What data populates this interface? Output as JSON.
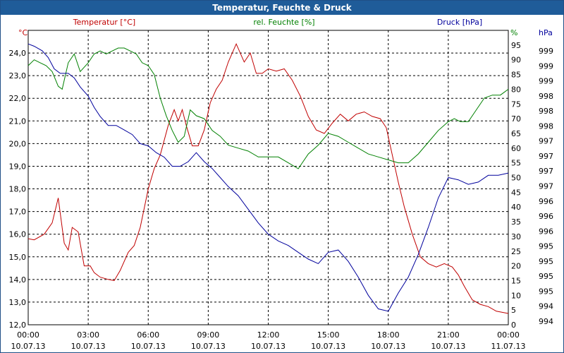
{
  "window": {
    "title": "Temperatur, Feuchte & Druck"
  },
  "colors": {
    "temperature": "#c00000",
    "humidity": "#008000",
    "pressure": "#00009c",
    "grid": "#000000",
    "axis_text": "#000000",
    "title_bar": "#1f5c99"
  },
  "chart_data": {
    "type": "line",
    "x_ticks": [
      {
        "time": "00:00",
        "date": "10.07.13"
      },
      {
        "time": "03:00",
        "date": "10.07.13"
      },
      {
        "time": "06:00",
        "date": "10.07.13"
      },
      {
        "time": "09:00",
        "date": "10.07.13"
      },
      {
        "time": "12:00",
        "date": "10.07.13"
      },
      {
        "time": "15:00",
        "date": "10.07.13"
      },
      {
        "time": "18:00",
        "date": "10.07.13"
      },
      {
        "time": "21:00",
        "date": "10.07.13"
      },
      {
        "time": "00:00",
        "date": "11.07.13"
      }
    ],
    "xlim": [
      0,
      24
    ],
    "axes": {
      "temperature": {
        "label": "Temperatur [°C]",
        "unit": "°C",
        "ylim": [
          12.0,
          25.0
        ],
        "ticks": [
          "12,0",
          "13,0",
          "14,0",
          "15,0",
          "16,0",
          "17,0",
          "18,0",
          "19,0",
          "20,0",
          "21,0",
          "22,0",
          "23,0",
          "24,0"
        ]
      },
      "humidity": {
        "label": "rel. Feuchte [%]",
        "unit": "%",
        "ylim": [
          0,
          100
        ],
        "ticks": [
          "0",
          "5",
          "10",
          "15",
          "20",
          "25",
          "30",
          "35",
          "40",
          "45",
          "50",
          "55",
          "60",
          "65",
          "70",
          "75",
          "80",
          "85",
          "90",
          "95"
        ]
      },
      "pressure": {
        "label": "Druck [hPa]",
        "unit": "hPa",
        "ticks": [
          "994",
          "994",
          "995",
          "995",
          "995",
          "995",
          "996",
          "996",
          "996",
          "997",
          "997",
          "997",
          "997",
          "998",
          "998",
          "998",
          "999",
          "999",
          "999"
        ]
      }
    },
    "series": [
      {
        "name": "Temperatur [°C]",
        "axis": "temperature",
        "x": [
          0,
          0.3,
          0.8,
          1.2,
          1.5,
          1.8,
          2.0,
          2.2,
          2.5,
          2.8,
          3.1,
          3.3,
          3.6,
          4.0,
          4.3,
          4.6,
          5.0,
          5.3,
          5.6,
          6.0,
          6.3,
          6.6,
          7.0,
          7.3,
          7.5,
          7.7,
          7.9,
          8.2,
          8.5,
          8.8,
          9.1,
          9.4,
          9.7,
          10.0,
          10.4,
          10.8,
          11.1,
          11.4,
          11.7,
          12.0,
          12.4,
          12.8,
          13.2,
          13.6,
          14.0,
          14.4,
          14.8,
          15.2,
          15.6,
          16.0,
          16.4,
          16.8,
          17.2,
          17.6,
          17.9,
          18.2,
          18.5,
          18.8,
          19.2,
          19.6,
          20.0,
          20.4,
          20.8,
          21.2,
          21.5,
          21.8,
          22.2,
          22.6,
          23.0,
          23.4,
          23.7,
          24.0
        ],
        "values": [
          15.8,
          15.75,
          16.0,
          16.5,
          17.6,
          15.6,
          15.3,
          16.3,
          16.1,
          14.6,
          14.6,
          14.3,
          14.1,
          14.0,
          13.95,
          14.4,
          15.2,
          15.5,
          16.3,
          18.0,
          18.9,
          19.5,
          20.8,
          21.5,
          21.0,
          21.5,
          20.8,
          19.9,
          19.9,
          20.6,
          21.8,
          22.4,
          22.8,
          23.6,
          24.4,
          23.6,
          24.0,
          23.1,
          23.1,
          23.3,
          23.2,
          23.3,
          22.8,
          22.1,
          21.2,
          20.6,
          20.45,
          20.9,
          21.3,
          21.0,
          21.3,
          21.4,
          21.2,
          21.1,
          20.7,
          19.5,
          18.3,
          17.2,
          16.0,
          15.0,
          14.7,
          14.55,
          14.7,
          14.55,
          14.2,
          13.7,
          13.1,
          12.9,
          12.8,
          12.6,
          12.55,
          12.5
        ]
      },
      {
        "name": "rel. Feuchte [%]",
        "axis": "humidity",
        "x": [
          0,
          0.3,
          0.6,
          0.9,
          1.2,
          1.5,
          1.7,
          2.0,
          2.3,
          2.6,
          3.0,
          3.3,
          3.6,
          3.9,
          4.2,
          4.5,
          4.8,
          5.1,
          5.4,
          5.7,
          6.0,
          6.3,
          6.6,
          6.9,
          7.2,
          7.5,
          7.8,
          8.1,
          8.4,
          8.8,
          9.2,
          9.6,
          10.0,
          10.5,
          11.0,
          11.5,
          12.0,
          12.5,
          13.0,
          13.5,
          14.0,
          14.5,
          15.0,
          15.5,
          16.0,
          16.5,
          17.0,
          17.5,
          18.0,
          18.5,
          19.0,
          19.5,
          20.0,
          20.5,
          21.0,
          21.3,
          21.6,
          22.0,
          22.4,
          22.8,
          23.2,
          23.6,
          24.0
        ],
        "values": [
          88,
          90,
          89,
          88,
          86,
          81,
          80,
          89,
          92,
          86,
          89,
          92,
          93,
          92,
          93,
          94,
          94,
          93,
          92,
          89,
          88,
          85,
          77,
          71,
          66,
          62,
          64,
          73,
          71,
          70,
          66,
          64,
          61,
          60,
          59,
          57,
          57,
          57,
          55,
          53,
          58,
          61,
          65,
          64,
          62,
          60,
          58,
          57,
          56,
          55,
          55,
          58,
          62,
          66,
          69,
          70,
          69,
          69,
          73,
          77,
          78,
          78,
          80
        ]
      },
      {
        "name": "Druck [hPa]",
        "axis": "pressure",
        "x": [
          0,
          0.3,
          0.7,
          1.0,
          1.3,
          1.6,
          2.0,
          2.3,
          2.6,
          3.0,
          3.3,
          3.6,
          4.0,
          4.4,
          4.8,
          5.2,
          5.6,
          6.0,
          6.4,
          6.8,
          7.2,
          7.6,
          8.0,
          8.4,
          8.8,
          9.2,
          9.6,
          10.0,
          10.5,
          11.0,
          11.5,
          12.0,
          12.5,
          13.0,
          13.5,
          14.0,
          14.5,
          15.0,
          15.5,
          16.0,
          16.5,
          17.0,
          17.5,
          18.0,
          18.5,
          19.0,
          19.5,
          20.0,
          20.5,
          21.0,
          21.5,
          22.0,
          22.5,
          23.0,
          23.5,
          24.0
        ],
        "values": [
          24.4,
          24.3,
          24.1,
          23.8,
          23.3,
          23.1,
          23.1,
          22.9,
          22.5,
          22.1,
          21.6,
          21.2,
          20.8,
          20.8,
          20.6,
          20.4,
          20.0,
          19.9,
          19.6,
          19.4,
          19.0,
          19.0,
          19.2,
          19.6,
          19.2,
          18.9,
          18.5,
          18.1,
          17.7,
          17.1,
          16.5,
          16.0,
          15.7,
          15.5,
          15.2,
          14.9,
          14.7,
          15.2,
          15.3,
          14.8,
          14.1,
          13.3,
          12.7,
          12.6,
          13.4,
          14.1,
          15.1,
          16.3,
          17.6,
          18.5,
          18.4,
          18.2,
          18.3,
          18.6,
          18.6,
          18.7
        ]
      }
    ]
  }
}
